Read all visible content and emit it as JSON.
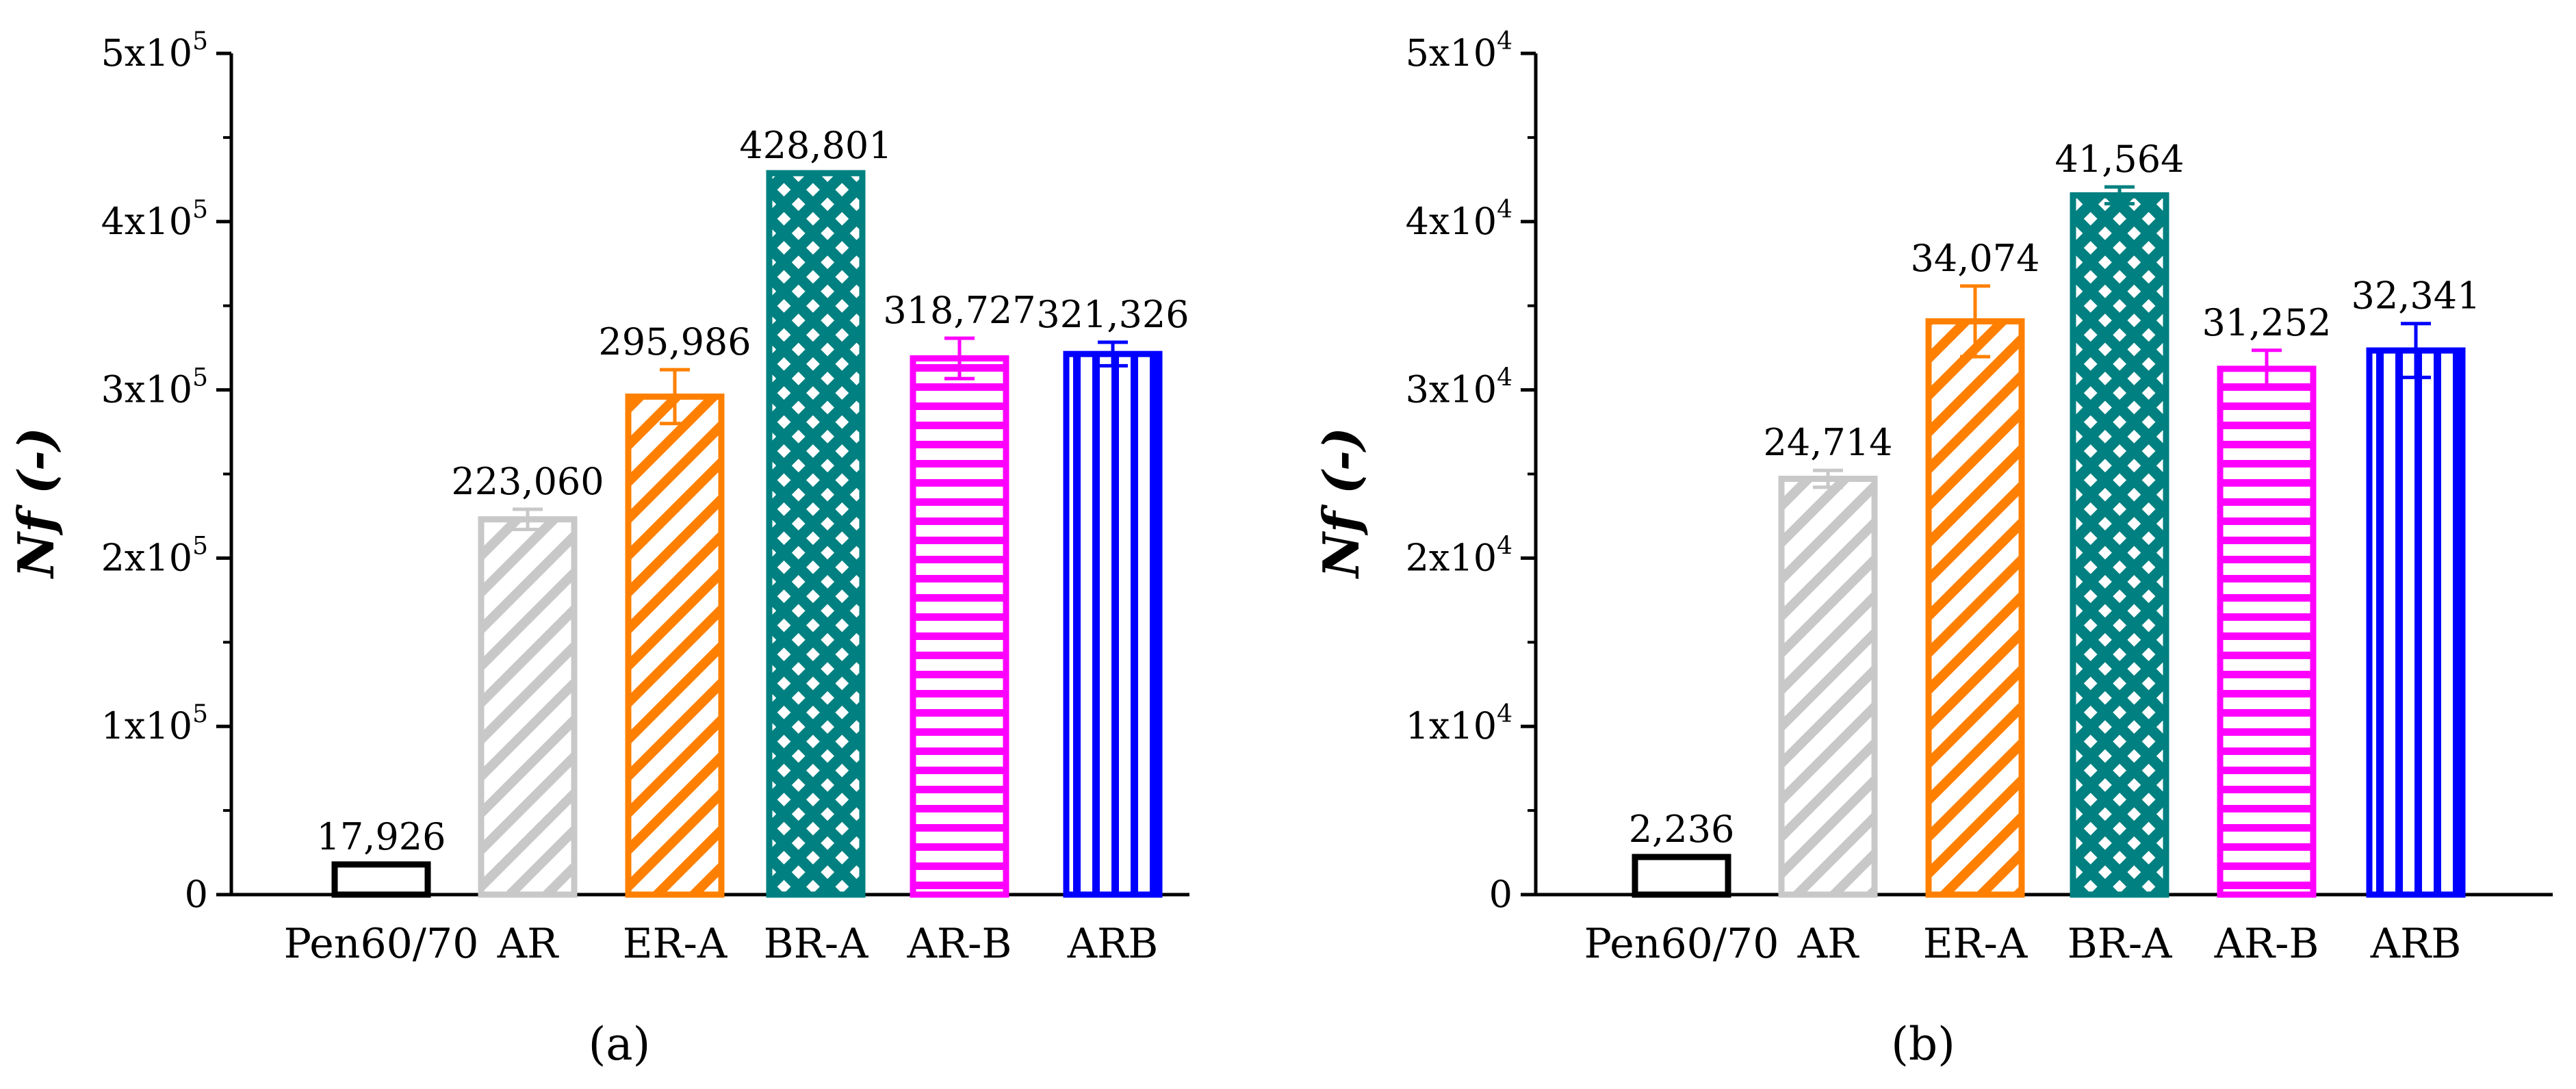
{
  "figure": {
    "panels": [
      "(a)",
      "(b)"
    ]
  },
  "chart_data": [
    {
      "type": "bar",
      "panel_label": "(a)",
      "title": "",
      "xlabel": "",
      "ylabel": "Nf (-)",
      "ylim": [
        0,
        500000
      ],
      "y_ticks": [
        {
          "value": 0,
          "label": "0",
          "exp": ""
        },
        {
          "value": 100000,
          "label": "1x10",
          "exp": "5"
        },
        {
          "value": 200000,
          "label": "2x10",
          "exp": "5"
        },
        {
          "value": 300000,
          "label": "3x10",
          "exp": "5"
        },
        {
          "value": 400000,
          "label": "4x10",
          "exp": "5"
        },
        {
          "value": 500000,
          "label": "5x10",
          "exp": "5"
        }
      ],
      "categories": [
        "Pen60/70",
        "AR",
        "ER-A",
        "BR-A",
        "AR-B",
        "ARB"
      ],
      "values": [
        17926,
        223060,
        295986,
        428801,
        318727,
        321326
      ],
      "value_labels": [
        "17,926",
        "223,060",
        "295,986",
        "428,801",
        "318,727",
        "321,326"
      ],
      "errors": [
        0,
        6000,
        16000,
        0,
        12000,
        7000
      ],
      "colors": [
        "#000000",
        "#c8c8c8",
        "#ff8000",
        "#008080",
        "#ff00ff",
        "#0000ff"
      ],
      "patterns": [
        "none",
        "diag",
        "diag",
        "cross",
        "horizontal",
        "vertical"
      ]
    },
    {
      "type": "bar",
      "panel_label": "(b)",
      "title": "",
      "xlabel": "",
      "ylabel": "Nf (-)",
      "ylim": [
        0,
        50000
      ],
      "y_ticks": [
        {
          "value": 0,
          "label": "0",
          "exp": ""
        },
        {
          "value": 10000,
          "label": "1x10",
          "exp": "4"
        },
        {
          "value": 20000,
          "label": "2x10",
          "exp": "4"
        },
        {
          "value": 30000,
          "label": "3x10",
          "exp": "4"
        },
        {
          "value": 40000,
          "label": "4x10",
          "exp": "4"
        },
        {
          "value": 50000,
          "label": "5x10",
          "exp": "4"
        }
      ],
      "categories": [
        "Pen60/70",
        "AR",
        "ER-A",
        "BR-A",
        "AR-B",
        "ARB"
      ],
      "values": [
        2236,
        24714,
        34074,
        41564,
        31252,
        32341
      ],
      "value_labels": [
        "2,236",
        "24,714",
        "34,074",
        "41,564",
        "31,252",
        "32,341"
      ],
      "errors": [
        0,
        500,
        2100,
        500,
        1100,
        1600
      ],
      "colors": [
        "#000000",
        "#c8c8c8",
        "#ff8000",
        "#008080",
        "#ff00ff",
        "#0000ff"
      ],
      "patterns": [
        "none",
        "diag",
        "diag",
        "cross",
        "horizontal",
        "vertical"
      ]
    }
  ]
}
